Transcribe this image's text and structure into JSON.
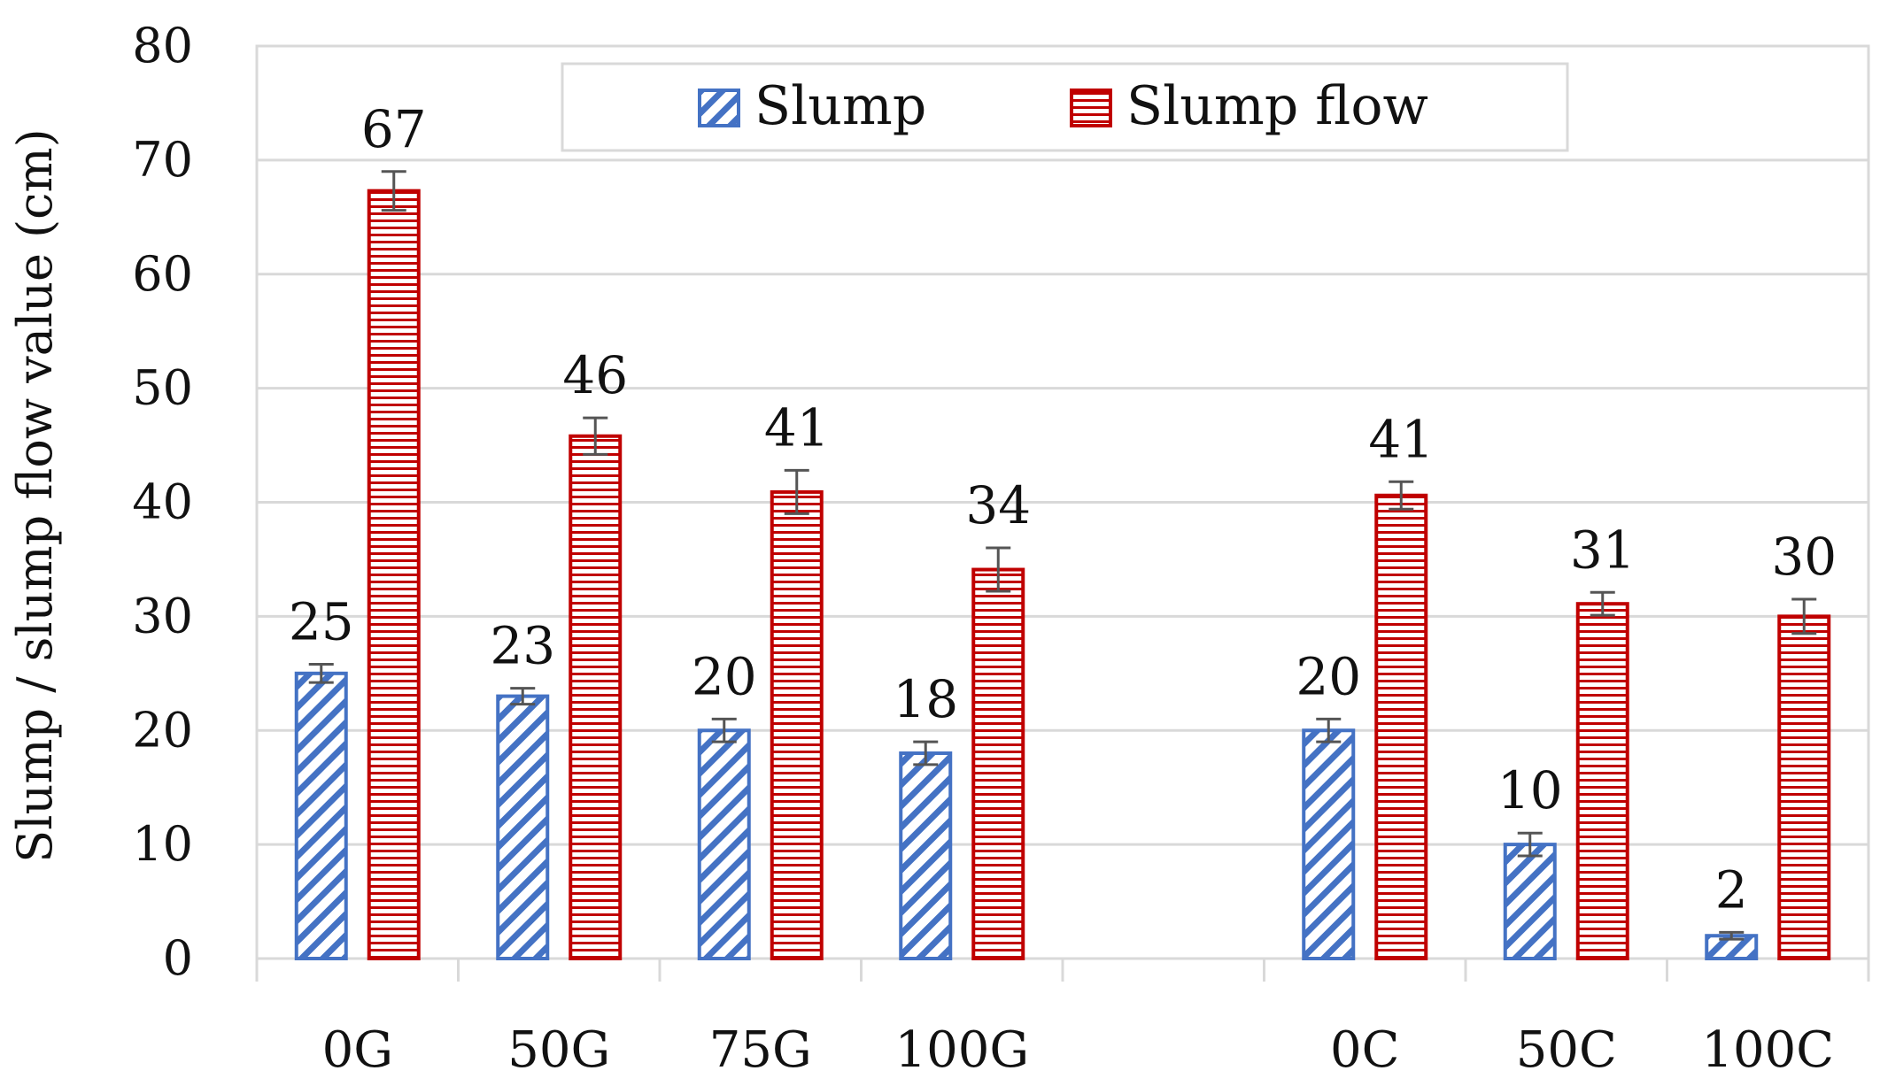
{
  "chart_data": {
    "type": "bar",
    "ylabel": "Slump / slump flow value (cm)",
    "xlabel": "",
    "ylim": [
      0,
      80
    ],
    "yticks": [
      0,
      10,
      20,
      30,
      40,
      50,
      60,
      70,
      80
    ],
    "grid": true,
    "legend_position": "top-center",
    "categories": [
      "0G",
      "50G",
      "75G",
      "100G",
      "",
      "0C",
      "50C",
      "100C"
    ],
    "series": [
      {
        "name": "Slump",
        "color": "#4472C4",
        "pattern": "diagonal-hatch",
        "values": [
          25,
          23,
          20,
          18,
          null,
          20,
          10,
          2
        ],
        "labels": [
          "25",
          "23",
          "20",
          "18",
          "",
          "20",
          "10",
          "2"
        ],
        "error": [
          0.8,
          0.7,
          1.0,
          1.0,
          null,
          1.0,
          1.0,
          0.3
        ]
      },
      {
        "name": "Slump flow",
        "color": "#C00000",
        "pattern": "horizontal-lines",
        "values": [
          67.3,
          45.8,
          40.9,
          34.1,
          null,
          40.6,
          31.1,
          30.0
        ],
        "labels": [
          "67",
          "46",
          "41",
          "34",
          "",
          "41",
          "31",
          "30"
        ],
        "error": [
          1.7,
          1.6,
          1.9,
          1.9,
          null,
          1.2,
          1.0,
          1.5
        ]
      }
    ]
  }
}
